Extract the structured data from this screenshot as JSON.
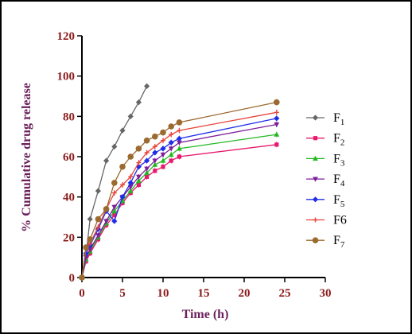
{
  "chart_data": {
    "type": "line",
    "xlabel": "Time (h)",
    "ylabel": "% Cumulative drug release",
    "xlim": [
      0,
      30
    ],
    "ylim": [
      0,
      120
    ],
    "xticks": [
      "0",
      "5",
      "10",
      "15",
      "20",
      "25",
      "30"
    ],
    "yticks": [
      "0",
      "20",
      "40",
      "60",
      "80",
      "100",
      "120"
    ],
    "grid": false,
    "legend_position": "right",
    "series": [
      {
        "name": "F",
        "sub": "1",
        "color": "#666666",
        "marker": "diamond",
        "x": [
          0,
          0.5,
          1,
          2,
          3,
          4,
          5,
          6,
          7,
          8
        ],
        "y": [
          0,
          11,
          29,
          43,
          58,
          65,
          73,
          80,
          87,
          95
        ]
      },
      {
        "name": "F",
        "sub": "2",
        "color": "#e8196e",
        "marker": "square",
        "x": [
          0,
          0.5,
          1,
          2,
          3,
          4,
          5,
          6,
          7,
          8,
          9,
          10,
          11,
          12,
          24
        ],
        "y": [
          0,
          8,
          12,
          19,
          26,
          31,
          37,
          42,
          46,
          50,
          53,
          55,
          58,
          60,
          66
        ]
      },
      {
        "name": "F",
        "sub": "3",
        "color": "#22b822",
        "marker": "triangle",
        "x": [
          0,
          0.5,
          1,
          2,
          3,
          4,
          5,
          6,
          7,
          8,
          9,
          10,
          11,
          12,
          24
        ],
        "y": [
          0,
          9,
          13,
          20,
          27,
          33,
          38,
          43,
          48,
          52,
          56,
          58,
          61,
          64,
          71
        ]
      },
      {
        "name": "F",
        "sub": "4",
        "color": "#7d1f9a",
        "marker": "triangle-down",
        "x": [
          0,
          0.5,
          1,
          2,
          3,
          4,
          5,
          6,
          7,
          8,
          9,
          10,
          11,
          12,
          24
        ],
        "y": [
          0,
          10,
          14,
          21,
          28,
          35,
          40,
          45,
          50,
          54,
          58,
          61,
          64,
          67,
          76
        ]
      },
      {
        "name": "F",
        "sub": "5",
        "color": "#1f2ee8",
        "marker": "diamond",
        "x": [
          0,
          0.5,
          1,
          2,
          3,
          4,
          5,
          6,
          7,
          8,
          9,
          10,
          11,
          12,
          24
        ],
        "y": [
          0,
          12,
          16,
          24,
          33,
          28,
          40,
          47,
          55,
          58,
          62,
          64,
          67,
          69,
          79
        ]
      },
      {
        "name": "F6",
        "sub": "",
        "color": "#e8443a",
        "marker": "plus",
        "x": [
          0,
          0.5,
          1,
          2,
          3,
          4,
          5,
          6,
          7,
          8,
          9,
          10,
          11,
          12,
          24
        ],
        "y": [
          0,
          14,
          17,
          25,
          34,
          42,
          46,
          50,
          57,
          62,
          65,
          68,
          71,
          73,
          82
        ]
      },
      {
        "name": "F",
        "sub": "7",
        "color": "#9b6a2f",
        "marker": "circle",
        "x": [
          0,
          0.5,
          1,
          2,
          3,
          4,
          5,
          6,
          7,
          8,
          9,
          10,
          11,
          12,
          24
        ],
        "y": [
          0,
          15,
          19,
          29,
          34,
          47,
          55,
          60,
          64,
          68,
          70,
          72,
          75,
          77,
          87
        ]
      }
    ]
  }
}
